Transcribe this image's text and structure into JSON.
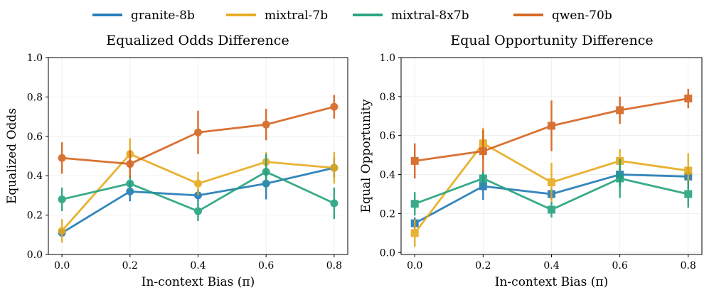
{
  "legend": [
    {
      "name": "granite-8b",
      "color": "#1a76b3"
    },
    {
      "name": "mixtral-7b",
      "color": "#e6a817"
    },
    {
      "name": "mixtral-8x7b",
      "color": "#1fa07a"
    },
    {
      "name": "qwen-70b",
      "color": "#d4601a"
    }
  ],
  "chart_data": [
    {
      "type": "line",
      "title": "Equalized Odds Difference",
      "xlabel": "In-context Bias (π)",
      "ylabel": "Equalized Odds",
      "marker": "circle",
      "x": [
        0.0,
        0.2,
        0.4,
        0.6,
        0.8
      ],
      "xticks": [
        "0.0",
        "0.2",
        "0.4",
        "0.6",
        "0.8"
      ],
      "yticks": [
        "0.0",
        "0.2",
        "0.4",
        "0.6",
        "0.8",
        "1.0"
      ],
      "xlim": [
        -0.04,
        0.84
      ],
      "ylim": [
        0.0,
        1.0
      ],
      "series": [
        {
          "name": "granite-8b",
          "values": [
            0.11,
            0.32,
            0.3,
            0.36,
            0.44
          ],
          "err": [
            0.02,
            0.05,
            0.03,
            0.08,
            0.05
          ]
        },
        {
          "name": "mixtral-7b",
          "values": [
            0.12,
            0.51,
            0.36,
            0.47,
            0.44
          ],
          "err": [
            0.06,
            0.08,
            0.06,
            0.05,
            0.08
          ]
        },
        {
          "name": "mixtral-8x7b",
          "values": [
            0.28,
            0.36,
            0.22,
            0.42,
            0.26
          ],
          "err": [
            0.06,
            0.04,
            0.05,
            0.09,
            0.08
          ]
        },
        {
          "name": "qwen-70b",
          "values": [
            0.49,
            0.46,
            0.62,
            0.66,
            0.75
          ],
          "err": [
            0.08,
            0.07,
            0.11,
            0.08,
            0.06
          ]
        }
      ]
    },
    {
      "type": "line",
      "title": "Equal Opportunity Difference",
      "xlabel": "In-context Bias (π)",
      "ylabel": "Equal Opportunity",
      "marker": "square",
      "x": [
        0.0,
        0.2,
        0.4,
        0.6,
        0.8
      ],
      "xticks": [
        "0.0",
        "0.2",
        "0.4",
        "0.6",
        "0.8"
      ],
      "yticks": [
        "0.0",
        "0.2",
        "0.4",
        "0.6",
        "0.8",
        "1.0"
      ],
      "xlim": [
        -0.04,
        0.84
      ],
      "ylim": [
        -0.01,
        1.0
      ],
      "series": [
        {
          "name": "granite-8b",
          "values": [
            0.15,
            0.34,
            0.3,
            0.4,
            0.39
          ],
          "err": [
            0.03,
            0.07,
            0.03,
            0.06,
            0.05
          ]
        },
        {
          "name": "mixtral-7b",
          "values": [
            0.1,
            0.56,
            0.36,
            0.47,
            0.42
          ],
          "err": [
            0.07,
            0.08,
            0.1,
            0.06,
            0.09
          ]
        },
        {
          "name": "mixtral-8x7b",
          "values": [
            0.25,
            0.38,
            0.22,
            0.38,
            0.3
          ],
          "err": [
            0.06,
            0.04,
            0.04,
            0.1,
            0.07
          ]
        },
        {
          "name": "qwen-70b",
          "values": [
            0.47,
            0.52,
            0.65,
            0.73,
            0.79
          ],
          "err": [
            0.09,
            0.11,
            0.13,
            0.07,
            0.05
          ]
        }
      ]
    }
  ]
}
